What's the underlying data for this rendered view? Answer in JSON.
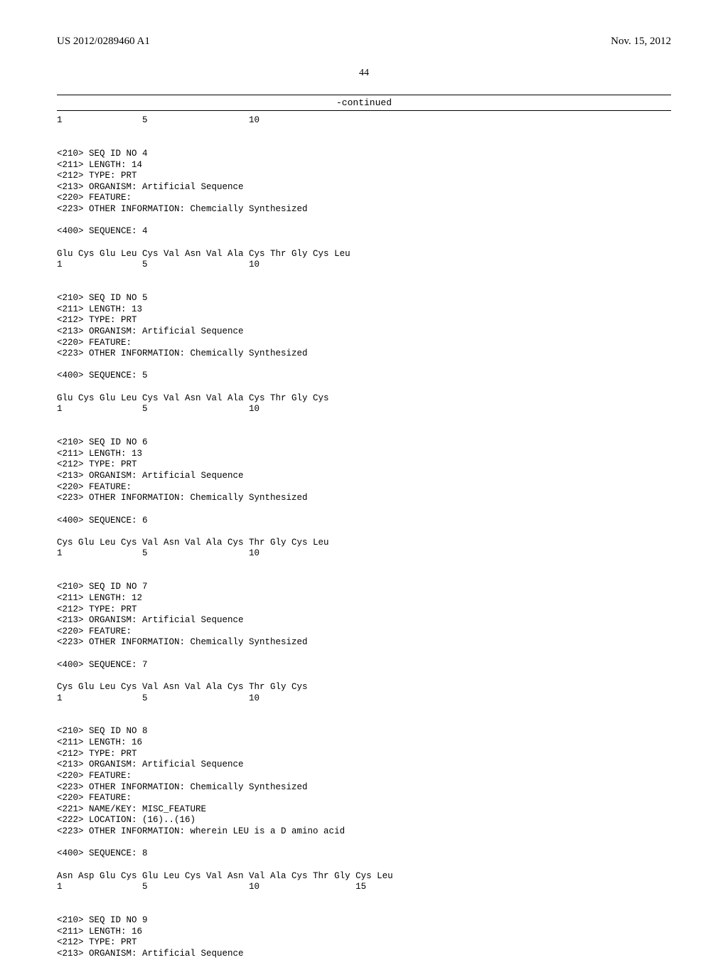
{
  "header": {
    "pub_number": "US 2012/0289460 A1",
    "date": "Nov. 15, 2012"
  },
  "page_number": "44",
  "continued_label": "-continued",
  "top_pos_line": "1               5                   10",
  "sequences": [
    {
      "id": "4",
      "length": "14",
      "type": "PRT",
      "organism": "Artificial Sequence",
      "features": [
        {
          "other_info": "Chemcially Synthesized"
        }
      ],
      "seq_num": "4",
      "seq_line": "Glu Cys Glu Leu Cys Val Asn Val Ala Cys Thr Gly Cys Leu",
      "pos_line": "1               5                   10"
    },
    {
      "id": "5",
      "length": "13",
      "type": "PRT",
      "organism": "Artificial Sequence",
      "features": [
        {
          "other_info": "Chemically Synthesized"
        }
      ],
      "seq_num": "5",
      "seq_line": "Glu Cys Glu Leu Cys Val Asn Val Ala Cys Thr Gly Cys",
      "pos_line": "1               5                   10"
    },
    {
      "id": "6",
      "length": "13",
      "type": "PRT",
      "organism": "Artificial Sequence",
      "features": [
        {
          "other_info": "Chemically Synthesized"
        }
      ],
      "seq_num": "6",
      "seq_line": "Cys Glu Leu Cys Val Asn Val Ala Cys Thr Gly Cys Leu",
      "pos_line": "1               5                   10"
    },
    {
      "id": "7",
      "length": "12",
      "type": "PRT",
      "organism": "Artificial Sequence",
      "features": [
        {
          "other_info": "Chemically Synthesized"
        }
      ],
      "seq_num": "7",
      "seq_line": "Cys Glu Leu Cys Val Asn Val Ala Cys Thr Gly Cys",
      "pos_line": "1               5                   10"
    },
    {
      "id": "8",
      "length": "16",
      "type": "PRT",
      "organism": "Artificial Sequence",
      "features": [
        {
          "other_info": "Chemically Synthesized"
        },
        {
          "name_key": "MISC_FEATURE",
          "location": "(16)..(16)",
          "other_info": "wherein LEU is a D amino acid"
        }
      ],
      "seq_num": "8",
      "seq_line": "Asn Asp Glu Cys Glu Leu Cys Val Asn Val Ala Cys Thr Gly Cys Leu",
      "pos_line": "1               5                   10                  15"
    },
    {
      "id": "9",
      "length": "16",
      "type": "PRT",
      "organism": "Artificial Sequence",
      "partial": true
    }
  ],
  "labels": {
    "seq_id": "<210> SEQ ID NO ",
    "length": "<211> LENGTH: ",
    "type": "<212> TYPE: ",
    "organism": "<213> ORGANISM: ",
    "feature": "<220> FEATURE:",
    "name_key": "<221> NAME/KEY: ",
    "location": "<222> LOCATION: ",
    "other_info": "<223> OTHER INFORMATION: ",
    "sequence": "<400> SEQUENCE: "
  }
}
